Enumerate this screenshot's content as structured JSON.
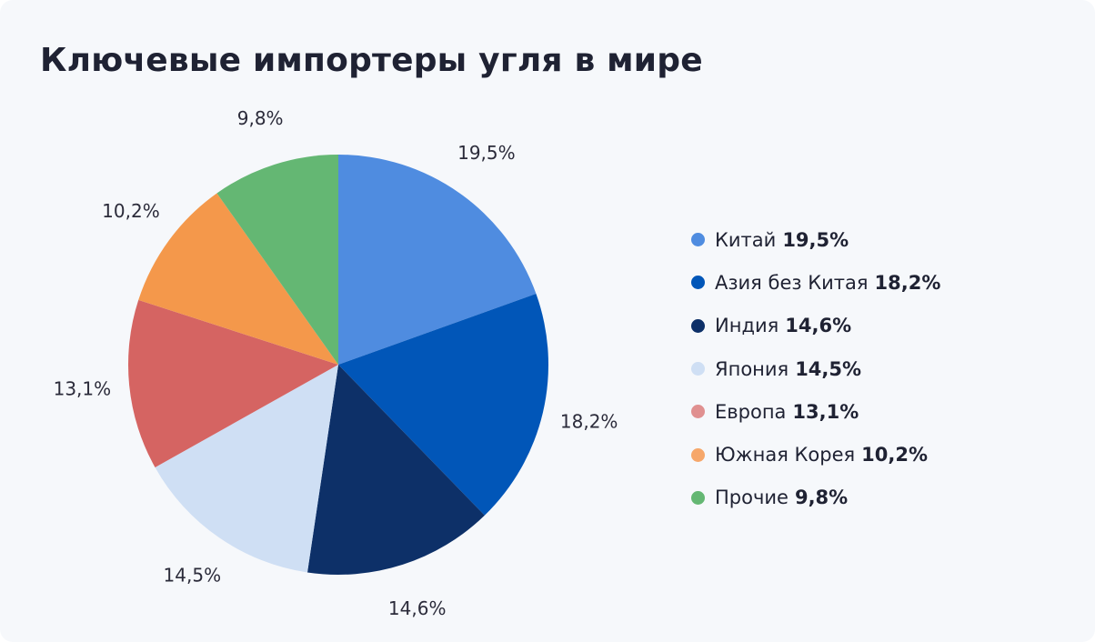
{
  "title": "Ключевые импортеры угля в мире",
  "chart_data": {
    "type": "pie",
    "categories": [
      "Китай",
      "Азия без Китая",
      "Индия",
      "Япония",
      "Европа",
      "Южная Корея",
      "Прочие"
    ],
    "values": [
      19.5,
      18.2,
      14.6,
      14.5,
      13.1,
      10.2,
      9.8
    ],
    "value_labels": [
      "19,5%",
      "18,2%",
      "14,6%",
      "14,5%",
      "13,1%",
      "10,2%",
      "9,8%"
    ],
    "colors": [
      "#4f8ce0",
      "#0156b8",
      "#0d3068",
      "#cfdff4",
      "#d56462",
      "#f4984b",
      "#64b773"
    ],
    "start_angle": "12 o'clock",
    "direction": "clockwise",
    "legend_position": "right",
    "legend_dot_colors": [
      "#4f8ce0",
      "#0156b8",
      "#0d3068",
      "#cfdff4",
      "#e09090",
      "#f6a76a",
      "#64b773"
    ]
  }
}
